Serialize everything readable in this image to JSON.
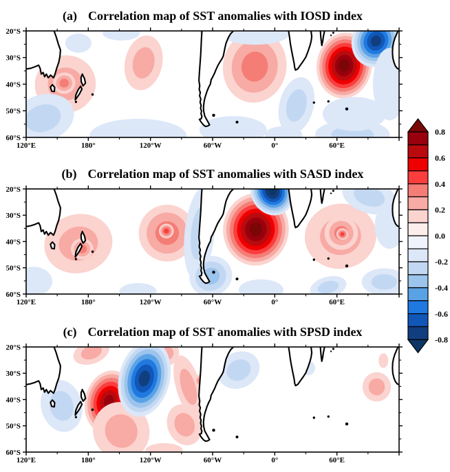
{
  "chart_data": {
    "type": "heatmap",
    "subtype": "filled-contour-correlation-maps",
    "x_tick_labels": [
      "120°E",
      "180°",
      "120°W",
      "60°W",
      "0°",
      "60°E"
    ],
    "y_tick_labels": [
      "20°S",
      "30°S",
      "40°S",
      "50°S",
      "60°S"
    ],
    "lon_span_deg": 360,
    "lat_range": [
      "20°S",
      "60°S"
    ],
    "colorbar": {
      "tick_labels": [
        "0.8",
        "0.6",
        "0.4",
        "0.2",
        "0.0",
        "-0.2",
        "-0.4",
        "-0.6",
        "-0.8"
      ],
      "cell_colors": [
        "#113e7e",
        "#1057b8",
        "#2079e0",
        "#5aa2e6",
        "#9cc4ec",
        "#c2d8f2",
        "#dce7f8",
        "#eff3fb",
        "#fdeeec",
        "#fbd3cf",
        "#f8aaa4",
        "#f47d76",
        "#fb3d3d",
        "#ee0000",
        "#bb0a0e",
        "#99000d"
      ],
      "under_color": "#0d3666",
      "over_color": "#7a0606"
    },
    "feature_format": "[u_frac_lon, v_frac_lat, radius_u, radius_v, rotation_deg, peak_correlation]",
    "panels": [
      {
        "label": "(a)",
        "title": "Correlation map of SST anomalies with IOSD index",
        "features": [
          [
            0.105,
            0.5,
            0.082,
            0.27,
            -12,
            0.2
          ],
          [
            0.102,
            0.49,
            0.03,
            0.1,
            -12,
            0.3
          ],
          [
            0.315,
            0.3,
            0.05,
            0.26,
            12,
            0.2
          ],
          [
            0.613,
            0.335,
            0.085,
            0.34,
            10,
            0.3
          ],
          [
            0.853,
            0.325,
            0.074,
            0.31,
            8,
            0.8
          ],
          [
            0.938,
            0.095,
            0.064,
            0.25,
            26,
            -0.7
          ],
          [
            0.14,
            0.115,
            0.035,
            0.09,
            0,
            -0.1
          ],
          [
            0.255,
            0.02,
            0.05,
            0.07,
            0,
            -0.1
          ],
          [
            0.5,
            0.01,
            0.035,
            0.05,
            0,
            -0.1
          ],
          [
            0.045,
            0.82,
            0.085,
            0.22,
            -18,
            -0.2
          ],
          [
            0.3,
            0.985,
            0.13,
            0.16,
            0,
            -0.1
          ],
          [
            0.555,
            0.93,
            0.09,
            0.13,
            0,
            -0.1
          ],
          [
            0.615,
            0.03,
            0.09,
            0.1,
            0,
            -0.1
          ],
          [
            0.725,
            0.7,
            0.046,
            0.27,
            14,
            -0.2
          ],
          [
            0.975,
            0.5,
            0.045,
            0.34,
            0,
            -0.1
          ],
          [
            0.875,
            0.975,
            0.1,
            0.14,
            0,
            -0.2
          ],
          [
            0.88,
            0.78,
            0.085,
            0.16,
            0,
            -0.1
          ],
          [
            0.69,
            0.975,
            0.05,
            0.08,
            0,
            -0.1
          ]
        ]
      },
      {
        "label": "(b)",
        "title": "Correlation map of SST anomalies with SASD index",
        "features": [
          [
            0.14,
            0.52,
            0.092,
            0.28,
            -14,
            0.2
          ],
          [
            0.15,
            0.57,
            0.03,
            0.1,
            0,
            0.3
          ],
          [
            0.378,
            0.42,
            0.076,
            0.27,
            10,
            0.3
          ],
          [
            0.376,
            0.4,
            0.02,
            0.07,
            0,
            0.4
          ],
          [
            0.465,
            0.42,
            0.04,
            0.44,
            6,
            -0.2
          ],
          [
            0.495,
            0.83,
            0.058,
            0.19,
            -24,
            -0.3
          ],
          [
            0.616,
            0.385,
            0.088,
            0.345,
            6,
            0.8
          ],
          [
            0.66,
            0.02,
            0.058,
            0.235,
            -22,
            -0.8
          ],
          [
            0.843,
            0.45,
            0.096,
            0.31,
            -8,
            0.2
          ],
          [
            0.845,
            0.42,
            0.045,
            0.16,
            -8,
            0.3
          ],
          [
            0.848,
            0.43,
            0.016,
            0.055,
            0,
            0.4
          ],
          [
            0.92,
            0.07,
            0.075,
            0.16,
            18,
            -0.2
          ],
          [
            0.975,
            0.35,
            0.04,
            0.22,
            0,
            -0.1
          ],
          [
            0.63,
            0.96,
            0.06,
            0.1,
            0,
            -0.1
          ],
          [
            0.81,
            0.935,
            0.05,
            0.1,
            -15,
            -0.2
          ],
          [
            0.96,
            0.885,
            0.06,
            0.13,
            0,
            -0.2
          ],
          [
            0.02,
            0.88,
            0.05,
            0.14,
            0,
            -0.1
          ],
          [
            0.3,
            0.975,
            0.05,
            0.08,
            0,
            -0.1
          ]
        ]
      },
      {
        "label": "(c)",
        "title": "Correlation map of SST anomalies with SPSD index",
        "features": [
          [
            0.095,
            0.56,
            0.055,
            0.25,
            -14,
            -0.2
          ],
          [
            0.222,
            0.52,
            0.064,
            0.3,
            14,
            0.7
          ],
          [
            0.255,
            0.8,
            0.075,
            0.28,
            -28,
            0.2
          ],
          [
            0.175,
            0.05,
            0.05,
            0.11,
            -20,
            0.2
          ],
          [
            0.375,
            0.06,
            0.035,
            0.12,
            -25,
            0.2
          ],
          [
            0.317,
            0.3,
            0.068,
            0.37,
            14,
            -0.7
          ],
          [
            0.435,
            0.38,
            0.033,
            0.31,
            -16,
            0.2
          ],
          [
            0.425,
            0.74,
            0.046,
            0.2,
            -22,
            0.2
          ],
          [
            0.468,
            0.32,
            0.016,
            0.06,
            0,
            0.3
          ],
          [
            0.37,
            0.985,
            0.05,
            0.07,
            0,
            0.1
          ],
          [
            0.57,
            0.22,
            0.058,
            0.17,
            -28,
            -0.2
          ],
          [
            0.755,
            0.2,
            0.02,
            0.07,
            0,
            -0.1
          ],
          [
            0.94,
            0.38,
            0.038,
            0.14,
            0,
            0.2
          ],
          [
            0.958,
            0.13,
            0.013,
            0.07,
            0,
            0.1
          ]
        ]
      }
    ],
    "coastlines": [
      {
        "name": "australia-east",
        "pts": [
          [
            0.075,
            0
          ],
          [
            0.081,
            0.06
          ],
          [
            0.086,
            0.12
          ],
          [
            0.092,
            0.18
          ],
          [
            0.0905,
            0.24
          ],
          [
            0.0875,
            0.295
          ],
          [
            0.082,
            0.35
          ],
          [
            0.0775,
            0.405
          ],
          [
            0.0735,
            0.44
          ],
          [
            0.0655,
            0.415
          ],
          [
            0.0595,
            0.44
          ],
          [
            0.054,
            0.405
          ],
          [
            0.0495,
            0.43
          ],
          [
            0.0455,
            0.39
          ],
          [
            0.0405,
            0.405
          ],
          [
            0.0375,
            0.35
          ],
          [
            0.0335,
            0.322
          ],
          [
            0.0235,
            0.337
          ],
          [
            0.013,
            0.35
          ],
          [
            0,
            0.358
          ]
        ],
        "fill_extra": [
          [
            0,
            0
          ]
        ],
        "closed": false
      },
      {
        "name": "tasmania",
        "pts": [
          [
            0.0705,
            0.505
          ],
          [
            0.0765,
            0.53
          ],
          [
            0.0755,
            0.57
          ],
          [
            0.0685,
            0.565
          ],
          [
            0.0652,
            0.527
          ]
        ],
        "fill_extra": [],
        "closed": true
      },
      {
        "name": "new-zealand-north",
        "pts": [
          [
            0.1505,
            0.405
          ],
          [
            0.1565,
            0.448
          ],
          [
            0.159,
            0.49
          ],
          [
            0.1528,
            0.516
          ],
          [
            0.1478,
            0.478
          ],
          [
            0.1472,
            0.438
          ]
        ],
        "fill_extra": [],
        "closed": true
      },
      {
        "name": "new-zealand-south",
        "pts": [
          [
            0.146,
            0.52
          ],
          [
            0.1497,
            0.546
          ],
          [
            0.1428,
            0.592
          ],
          [
            0.1358,
            0.628
          ],
          [
            0.1318,
            0.648
          ],
          [
            0.1332,
            0.603
          ],
          [
            0.139,
            0.556
          ]
        ],
        "fill_extra": [],
        "closed": true
      },
      {
        "name": "south-america",
        "pts": [
          [
            0.4714,
            0
          ],
          [
            0.4702,
            0.07
          ],
          [
            0.4692,
            0.14
          ],
          [
            0.468,
            0.22
          ],
          [
            0.4662,
            0.31
          ],
          [
            0.4643,
            0.4
          ],
          [
            0.4632,
            0.465
          ],
          [
            0.4655,
            0.515
          ],
          [
            0.464,
            0.55
          ],
          [
            0.467,
            0.578
          ],
          [
            0.4652,
            0.61
          ],
          [
            0.4683,
            0.64
          ],
          [
            0.4665,
            0.67
          ],
          [
            0.4692,
            0.698
          ],
          [
            0.4678,
            0.727
          ],
          [
            0.4703,
            0.752
          ],
          [
            0.4688,
            0.778
          ],
          [
            0.4713,
            0.8
          ],
          [
            0.4698,
            0.824
          ],
          [
            0.4645,
            0.83
          ],
          [
            0.4695,
            0.858
          ],
          [
            0.4758,
            0.884
          ],
          [
            0.4808,
            0.897
          ],
          [
            0.4868,
            0.893
          ],
          [
            0.4918,
            0.882
          ],
          [
            0.4862,
            0.846
          ],
          [
            0.479,
            0.8
          ],
          [
            0.4762,
            0.757
          ],
          [
            0.4755,
            0.718
          ],
          [
            0.4772,
            0.664
          ],
          [
            0.4797,
            0.624
          ],
          [
            0.485,
            0.566
          ],
          [
            0.4906,
            0.52
          ],
          [
            0.494,
            0.5
          ],
          [
            0.4962,
            0.458
          ],
          [
            0.5,
            0.434
          ],
          [
            0.506,
            0.39
          ],
          [
            0.5085,
            0.368
          ],
          [
            0.514,
            0.325
          ],
          [
            0.52,
            0.29
          ],
          [
            0.526,
            0.256
          ],
          [
            0.5288,
            0.234
          ],
          [
            0.533,
            0.16
          ],
          [
            0.536,
            0.115
          ],
          [
            0.542,
            0.064
          ],
          [
            0.548,
            0.028
          ],
          [
            0.5556,
            0
          ]
        ],
        "fill_extra": [],
        "closed": false
      },
      {
        "name": "africa",
        "pts": [
          [
            0.7036,
            0
          ],
          [
            0.706,
            0.055
          ],
          [
            0.7083,
            0.115
          ],
          [
            0.7112,
            0.175
          ],
          [
            0.7152,
            0.245
          ],
          [
            0.7186,
            0.305
          ],
          [
            0.7202,
            0.345
          ],
          [
            0.7224,
            0.368
          ],
          [
            0.7282,
            0.357
          ],
          [
            0.736,
            0.318
          ],
          [
            0.743,
            0.284
          ],
          [
            0.75,
            0.245
          ],
          [
            0.756,
            0.19
          ],
          [
            0.7612,
            0.135
          ],
          [
            0.764,
            0.098
          ],
          [
            0.7658,
            0.054
          ],
          [
            0.7645,
            0.018
          ],
          [
            0.764,
            0
          ]
        ],
        "fill_extra": [],
        "closed": false
      },
      {
        "name": "madagascar",
        "pts": [
          [
            0.789,
            0
          ],
          [
            0.79,
            0.052
          ],
          [
            0.7915,
            0.102
          ],
          [
            0.7928,
            0.136
          ],
          [
            0.7952,
            0.098
          ],
          [
            0.797,
            0.052
          ],
          [
            0.799,
            0.018
          ],
          [
            0.8,
            0
          ]
        ],
        "fill_extra": [],
        "closed": false
      },
      {
        "name": "west-australia",
        "pts": [
          [
            0.997,
            0
          ],
          [
            0.9925,
            0.038
          ],
          [
            0.9888,
            0.068
          ],
          [
            0.9853,
            0.108
          ],
          [
            0.9829,
            0.152
          ],
          [
            0.9822,
            0.202
          ],
          [
            0.9832,
            0.252
          ],
          [
            0.9863,
            0.296
          ],
          [
            0.9902,
            0.33
          ],
          [
            0.995,
            0.351
          ],
          [
            1.0,
            0.36
          ]
        ],
        "fill_extra": [
          [
            1,
            0
          ]
        ],
        "closed": false
      }
    ],
    "island_dots": [
      {
        "name": "stewart-island",
        "u": 0.1335,
        "v": 0.667,
        "r": 1.6
      },
      {
        "name": "chatham-island",
        "u": 0.178,
        "v": 0.597,
        "r": 1.8
      },
      {
        "name": "falkland-islands",
        "u": 0.5028,
        "v": 0.792,
        "r": 2.2
      },
      {
        "name": "south-georgia",
        "u": 0.5655,
        "v": 0.856,
        "r": 2.0
      },
      {
        "name": "kerguelen",
        "u": 0.8597,
        "v": 0.733,
        "r": 2.2
      },
      {
        "name": "crozet",
        "u": 0.8106,
        "v": 0.662,
        "r": 1.7
      },
      {
        "name": "prince-edward",
        "u": 0.7717,
        "v": 0.673,
        "r": 1.7
      },
      {
        "name": "mauritius",
        "u": 0.8236,
        "v": 0.018,
        "r": 1.5
      },
      {
        "name": "reunion",
        "u": 0.8176,
        "v": 0.042,
        "r": 1.2
      }
    ]
  }
}
